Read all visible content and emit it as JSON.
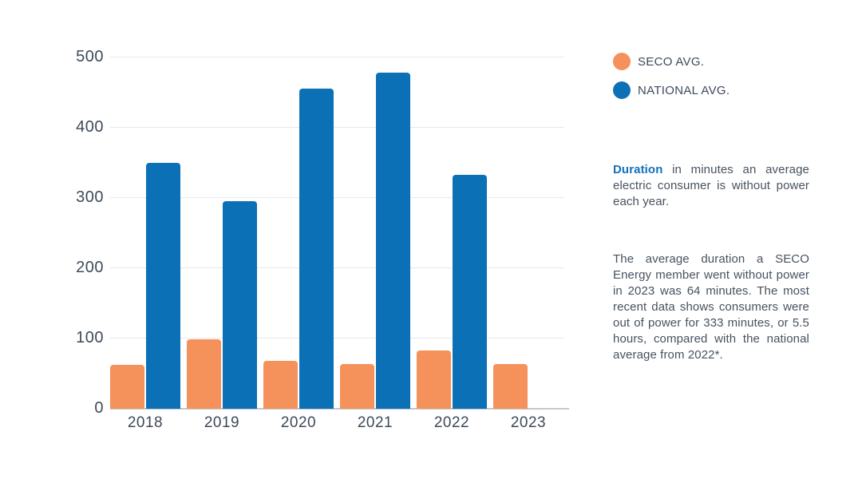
{
  "colors": {
    "seco_orange": "#f5915a",
    "national_blue": "#0c70b7",
    "accent_blue": "#1272b9",
    "text_dark": "#3e4a5a",
    "grid": "#e7e8ea",
    "axis_line": "#c3c8cd"
  },
  "legend": {
    "items": [
      {
        "label": "SECO AVG.",
        "color": "#f5915a"
      },
      {
        "label": "NATIONAL AVG.",
        "color": "#0c70b7"
      }
    ]
  },
  "description": {
    "lead_word": "Duration",
    "lead_rest": " in minutes an average electric consumer is without power each year."
  },
  "body_paragraph": "The average duration a SECO Energy member went without power in 2023 was 64 minutes. The most recent data shows consumers were out of power for 333 minutes, or 5.5 hours, compared with the national average from 2022*.",
  "chart_data": {
    "type": "bar",
    "categories": [
      "2018",
      "2019",
      "2020",
      "2021",
      "2022",
      "2023"
    ],
    "series": [
      {
        "name": "SECO AVG.",
        "color": "#f5915a",
        "values": [
          62,
          99,
          68,
          64,
          83,
          64
        ]
      },
      {
        "name": "NATIONAL AVG.",
        "color": "#0c70b7",
        "values": [
          350,
          295,
          456,
          478,
          333,
          null
        ]
      }
    ],
    "title": "",
    "xlabel": "",
    "ylabel": "Duration in minutes",
    "ylim": [
      0,
      500
    ],
    "yticks": [
      0,
      100,
      200,
      300,
      400,
      500
    ],
    "grid": true,
    "legend_position": "top-right"
  }
}
